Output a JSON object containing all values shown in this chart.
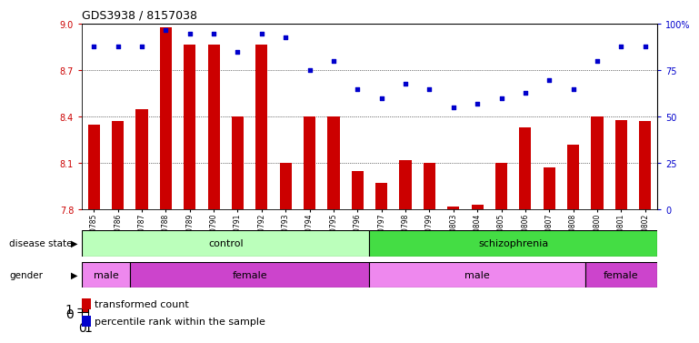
{
  "title": "GDS3938 / 8157038",
  "samples": [
    "GSM630785",
    "GSM630786",
    "GSM630787",
    "GSM630788",
    "GSM630789",
    "GSM630790",
    "GSM630791",
    "GSM630792",
    "GSM630793",
    "GSM630794",
    "GSM630795",
    "GSM630796",
    "GSM630797",
    "GSM630798",
    "GSM630799",
    "GSM630803",
    "GSM630804",
    "GSM630805",
    "GSM630806",
    "GSM630807",
    "GSM630808",
    "GSM630800",
    "GSM630801",
    "GSM630802"
  ],
  "bar_values": [
    8.35,
    8.37,
    8.45,
    8.98,
    8.87,
    8.87,
    8.4,
    8.87,
    8.1,
    8.4,
    8.4,
    8.05,
    7.97,
    8.12,
    8.1,
    7.82,
    7.83,
    8.1,
    8.33,
    8.07,
    8.22,
    8.4,
    8.38,
    8.37
  ],
  "dot_values": [
    88,
    88,
    88,
    97,
    95,
    95,
    85,
    95,
    93,
    75,
    80,
    65,
    60,
    68,
    65,
    55,
    57,
    60,
    63,
    70,
    65,
    80,
    88,
    88
  ],
  "ymin": 7.8,
  "ymax": 9.0,
  "yticks": [
    7.8,
    8.1,
    8.4,
    8.7,
    9.0
  ],
  "y2min": 0,
  "y2max": 100,
  "y2ticks": [
    0,
    25,
    50,
    75,
    100
  ],
  "bar_color": "#cc0000",
  "dot_color": "#0000cc",
  "plot_bg": "#ffffff",
  "fig_bg": "#ffffff",
  "disease_state_control_color": "#bbffbb",
  "disease_state_schizo_color": "#44dd44",
  "gender_male_color": "#ee88ee",
  "gender_female_color": "#cc44cc",
  "control_count": 12,
  "schizo_count": 12,
  "control_male_count": 2,
  "control_female_count": 10,
  "schizo_male_count": 9,
  "schizo_female_count": 3
}
